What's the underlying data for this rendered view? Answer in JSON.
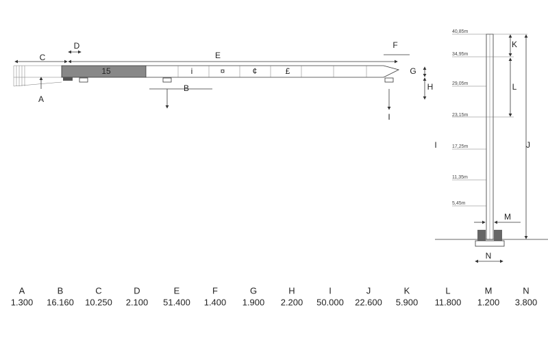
{
  "jib": {
    "dimensions": [
      "A",
      "B",
      "C",
      "D",
      "E",
      "F",
      "G",
      "H",
      "I"
    ],
    "section": "15",
    "symbols": [
      "i",
      "¤",
      "¢",
      "£"
    ]
  },
  "mast": {
    "side_label": "I",
    "heights": [
      "40,85m",
      "34,95m",
      "29,05m",
      "23,15m",
      "17,25m",
      "11,35m",
      "5,45m"
    ],
    "dimensions": [
      "J",
      "K",
      "L",
      "M",
      "N"
    ]
  },
  "table": {
    "headers": [
      "A",
      "B",
      "C",
      "D",
      "E",
      "F",
      "G",
      "H",
      "I",
      "J",
      "K",
      "L",
      "M",
      "N"
    ],
    "values": [
      "1.300",
      "16.160",
      "10.250",
      "2.100",
      "51.400",
      "1.400",
      "1.900",
      "2.200",
      "50.000",
      "22.600",
      "5.900",
      "11.800",
      "1.200",
      "3.800"
    ]
  }
}
